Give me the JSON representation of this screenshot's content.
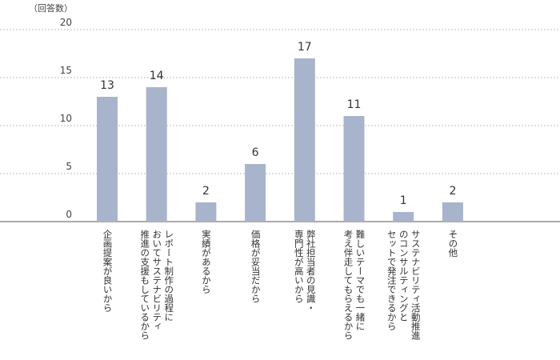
{
  "chart_data": {
    "type": "bar",
    "unit_label": "（回答数）",
    "categories": [
      "企画提案が良いから",
      "レポート制作の過程に\nおいてサステナビリティ\n推進の支援もしているから",
      "実績があるから",
      "価格が妥当だから",
      "弊社担当者の見識・\n専門性が高いから",
      "難しいテーマでも一緒に\n考え伴走してもらえるから",
      "サステナビリティ活動推進\nのコンサルティングと\nセットで発注できるから",
      "その他"
    ],
    "values": [
      13,
      14,
      2,
      6,
      17,
      11,
      1,
      2
    ],
    "ylim": [
      0,
      20
    ],
    "yticks": [
      0,
      5,
      10,
      15,
      20
    ],
    "grid": true,
    "colors": {
      "bar": "#a8b4cb",
      "grid": "#bbbbbb",
      "axis": "#555555",
      "text": "#333333"
    }
  }
}
